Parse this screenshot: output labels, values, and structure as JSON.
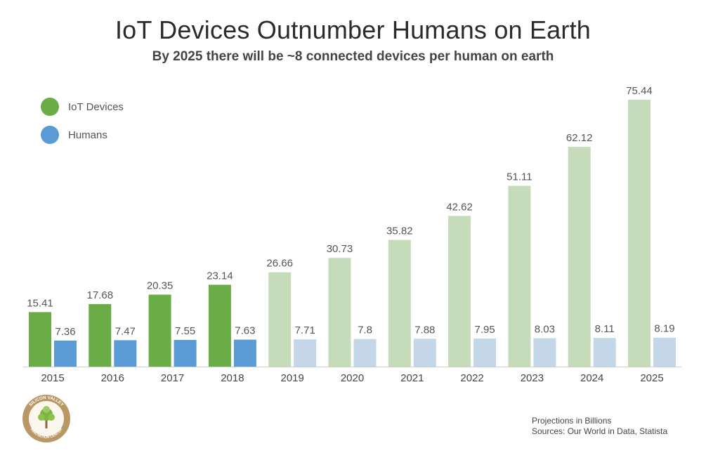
{
  "title": "IoT Devices Outnumber Humans on Earth",
  "subtitle": "By 2025 there will be ~8 connected devices per human on earth",
  "legend": [
    {
      "label": "IoT Devices",
      "color": "#6aac45"
    },
    {
      "label": "Humans",
      "color": "#5b9bd5"
    }
  ],
  "colors": {
    "iot_actual": "#6aac45",
    "iot_projected": "#c6dbb9",
    "humans_actual": "#5b9bd5",
    "humans_projected": "#c3d7e9",
    "label": "#555555",
    "axis": "#cccccc"
  },
  "footer": {
    "line1": "Projections in Billions",
    "line2": "Sources: Our World in Data, Statista"
  },
  "logo": {
    "text_top": "SILICON VALLEY",
    "text_bottom": "INNOVATION CENTER",
    "icon": "tree-icon"
  },
  "chart_data": {
    "type": "bar",
    "title": "IoT Devices Outnumber Humans on Earth",
    "subtitle": "By 2025 there will be ~8 connected devices per human on earth",
    "categories": [
      "2015",
      "2016",
      "2017",
      "2018",
      "2019",
      "2020",
      "2021",
      "2022",
      "2023",
      "2024",
      "2025"
    ],
    "series": [
      {
        "name": "IoT Devices",
        "values": [
          15.41,
          17.68,
          20.35,
          23.14,
          26.66,
          30.73,
          35.82,
          42.62,
          51.11,
          62.12,
          75.44
        ]
      },
      {
        "name": "Humans",
        "values": [
          7.36,
          7.47,
          7.55,
          7.63,
          7.71,
          7.8,
          7.88,
          7.95,
          8.03,
          8.11,
          8.19
        ]
      }
    ],
    "data_labels": {
      "IoT Devices": [
        "15.41",
        "17.68",
        "20.35",
        "23.14",
        "26.66",
        "30.73",
        "35.82",
        "42.62",
        "51.11",
        "62.12",
        "75.44"
      ],
      "Humans": [
        "7.36",
        "7.47",
        "7.55",
        "7.63",
        "7.71",
        "7.8",
        "7.88",
        "7.95",
        "8.03",
        "8.11",
        "8.19"
      ]
    },
    "projected_from": "2019",
    "ylim": [
      0,
      75.44
    ],
    "grid": false,
    "legend_position": "top-left"
  }
}
